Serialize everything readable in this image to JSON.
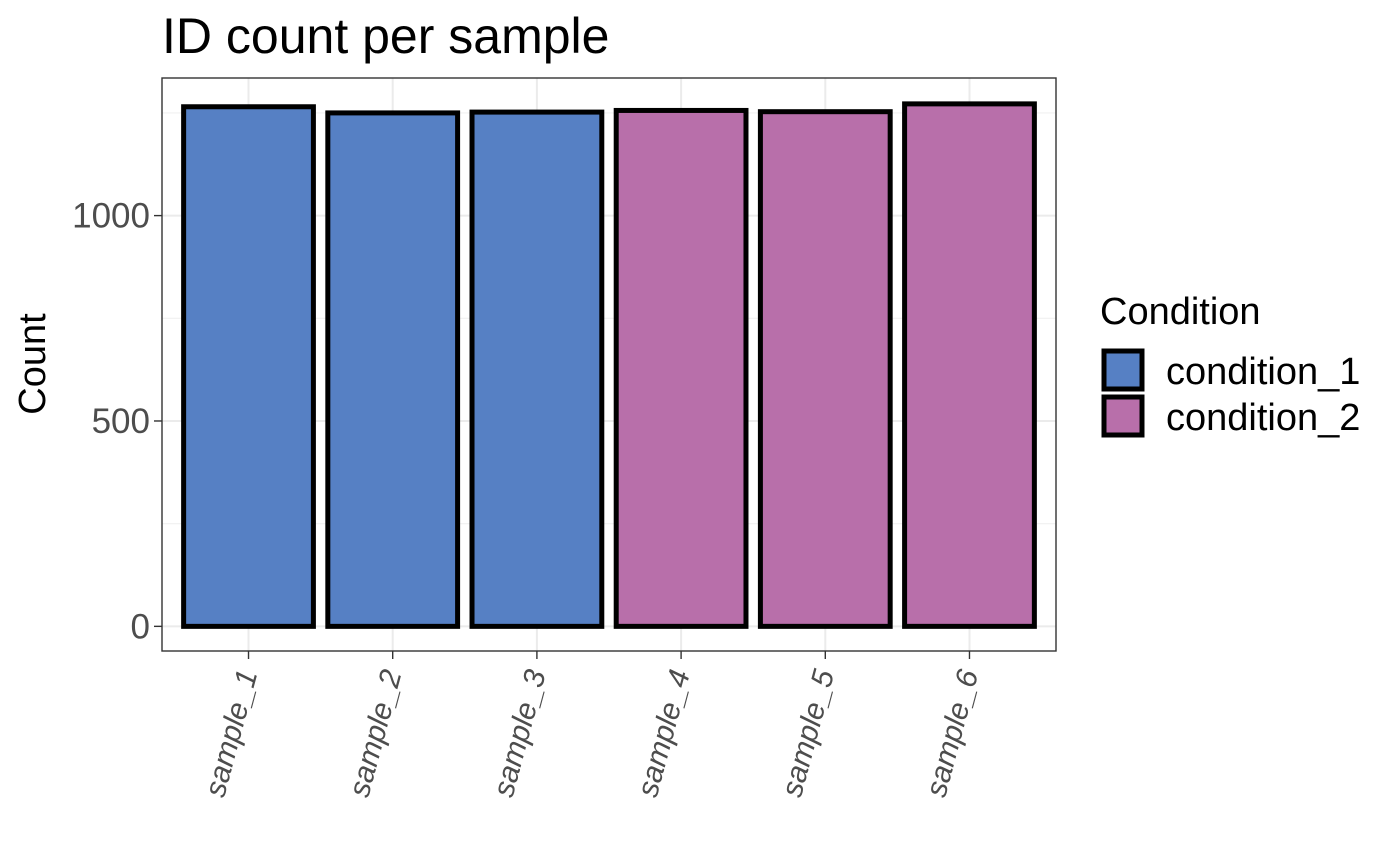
{
  "chart_data": {
    "type": "bar",
    "title": "ID count per sample",
    "xlabel": "",
    "ylabel": "Count",
    "categories": [
      "sample_1",
      "sample_2",
      "sample_3",
      "sample_4",
      "sample_5",
      "sample_6"
    ],
    "values": [
      1265,
      1250,
      1252,
      1256,
      1253,
      1272
    ],
    "groups": [
      "condition_1",
      "condition_1",
      "condition_1",
      "condition_2",
      "condition_2",
      "condition_2"
    ],
    "yticks": [
      0,
      500,
      1000
    ],
    "ylim": [
      -60,
      1335
    ],
    "grid": true,
    "legend": {
      "title": "Condition",
      "position": "right",
      "entries": [
        {
          "label": "condition_1",
          "color": "#5680C4"
        },
        {
          "label": "condition_2",
          "color": "#B86FAA"
        }
      ]
    },
    "bar_border_color": "#000000"
  }
}
